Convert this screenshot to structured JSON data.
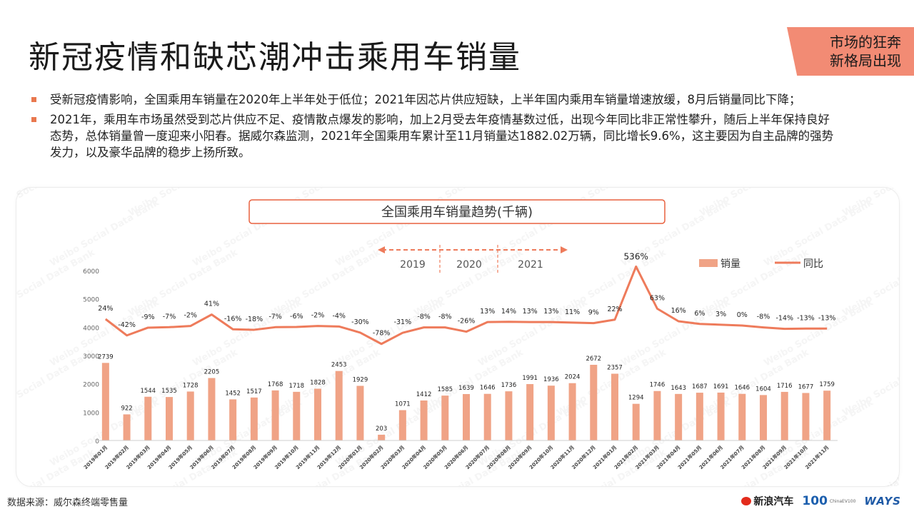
{
  "page": {
    "title": "新冠疫情和缺芯潮冲击乘用车销量",
    "corner_line1": "市场的狂奔",
    "corner_line2": "新格局出现",
    "bullets": [
      "受新冠疫情影响，全国乘用车销量在2020年上半年处于低位；2021年因芯片供应短缺，上半年国内乘用车销量增速放缓，8月后销量同比下降；",
      "2021年，乘用车市场虽然受到芯片供应不足、疫情散点爆发的影响，加上2月受去年疫情基数过低，出现今年同比非正常性攀升，随后上半年保持良好态势，总体销量曾一度迎来小阳春。据威尔森监测，2021年全国乘用车累计至11月销量达1882.02万辆，同比增长9.6%，这主要因为自主品牌的强势发力，以及豪华品牌的稳步上扬所致。"
    ],
    "source": "数据来源：威尔森终端零售量",
    "logo_sina": "新浪汽车",
    "logo_100": "100",
    "logo_100_sub": "ChinaEV100",
    "logo_ways": "WAYS",
    "watermark": "Weibo Social Data Bank",
    "accent_color": "#f0a386",
    "line_color": "#ee7b5b",
    "title_box_border": "#e9603e"
  },
  "chart_data": {
    "type": "bar+line",
    "title": "全国乘用车销量趋势(千辆)",
    "period_labels": [
      "2019",
      "2020",
      "2021"
    ],
    "ylim": [
      0,
      6000
    ],
    "yticks": [
      0,
      1000,
      2000,
      3000,
      4000,
      5000,
      6000
    ],
    "legend": {
      "bar": "销量",
      "line": "同比",
      "position": "top-right"
    },
    "categories": [
      "2019年01月",
      "2019年02月",
      "2019年03月",
      "2019年04月",
      "2019年05月",
      "2019年06月",
      "2019年07月",
      "2019年08月",
      "2019年09月",
      "2019年10月",
      "2019年11月",
      "2019年12月",
      "2020年01月",
      "2020年02月",
      "2020年03月",
      "2020年04月",
      "2020年05月",
      "2020年06月",
      "2020年07月",
      "2020年08月",
      "2020年09月",
      "2020年10月",
      "2020年11月",
      "2020年12月",
      "2021年01月",
      "2021年02月",
      "2021年03月",
      "2021年04月",
      "2021年05月",
      "2021年06月",
      "2021年07月",
      "2021年08月",
      "2021年09月",
      "2021年10月",
      "2021年11月"
    ],
    "series": [
      {
        "name": "销量",
        "type": "bar",
        "values": [
          2739,
          922,
          1544,
          1535,
          1728,
          2205,
          1452,
          1517,
          1768,
          1718,
          1828,
          2453,
          1929,
          203,
          1071,
          1412,
          1585,
          1639,
          1646,
          1736,
          1991,
          1936,
          2024,
          2672,
          2357,
          1294,
          1746,
          1643,
          1687,
          1691,
          1646,
          1604,
          1716,
          1677,
          1759
        ]
      },
      {
        "name": "同比",
        "type": "line",
        "unit": "%",
        "values": [
          24,
          -42,
          -9,
          -7,
          -2,
          41,
          -16,
          -18,
          -7,
          -6,
          -2,
          -4,
          -30,
          -78,
          -31,
          -8,
          -8,
          -26,
          13,
          14,
          13,
          13,
          11,
          9,
          22,
          536,
          63,
          16,
          6,
          3,
          0,
          -8,
          -14,
          -13,
          -13
        ]
      }
    ]
  }
}
